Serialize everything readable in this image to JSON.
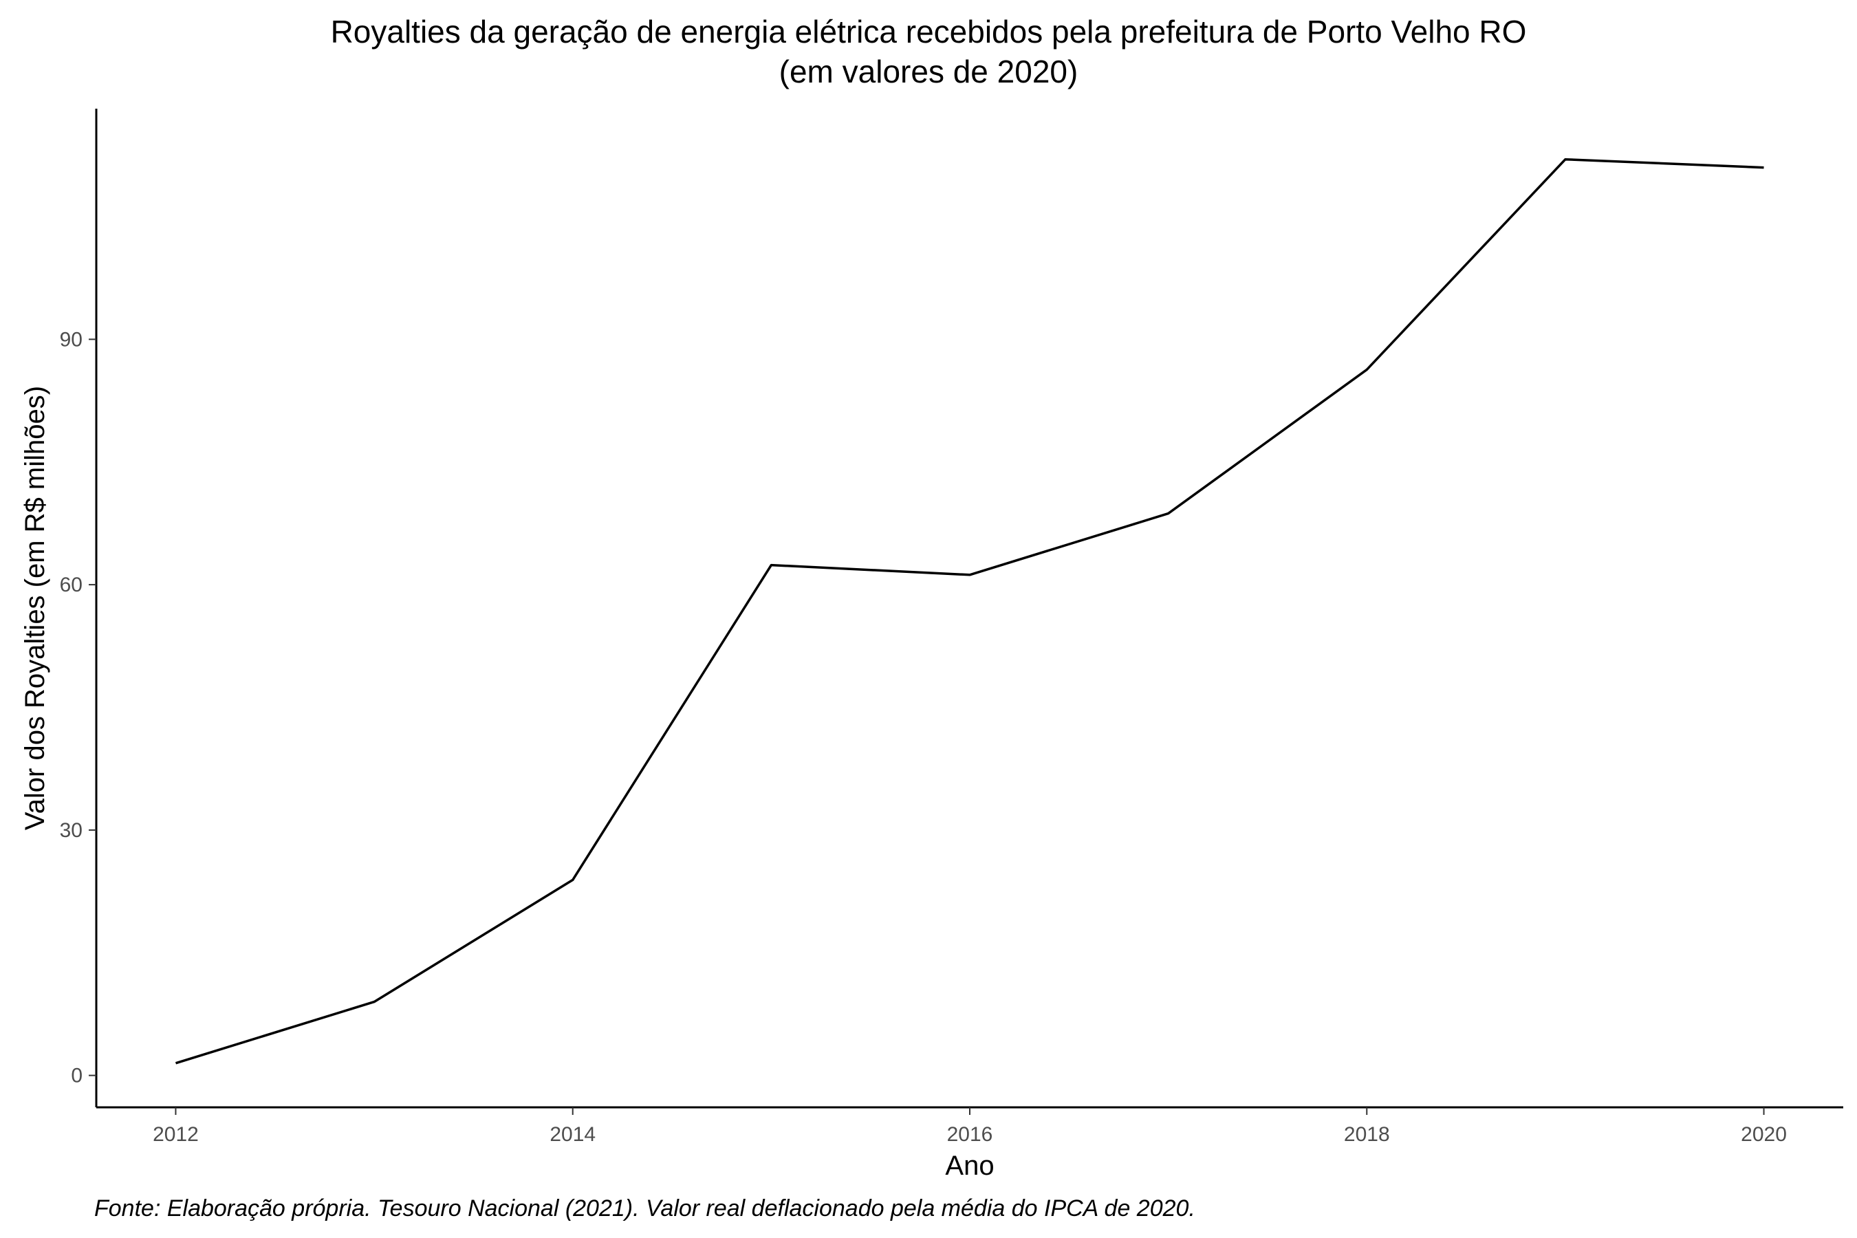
{
  "chart_data": {
    "type": "line",
    "title": "Royalties da geração de energia elétrica recebidos pela prefeitura de Porto Velho RO",
    "subtitle": "(em valores de 2020)",
    "xlabel": "Ano",
    "ylabel": "Valor dos Royalties (em R$ milhões)",
    "caption": "Fonte: Elaboração própria. Tesouro Nacional (2021). Valor real deflacionado pela média do IPCA de 2020.",
    "x": [
      2012,
      2013,
      2014,
      2015,
      2016,
      2017,
      2018,
      2019,
      2020
    ],
    "series": [
      {
        "values": [
          1.5,
          9.0,
          23.9,
          62.4,
          61.2,
          68.7,
          86.3,
          112.0,
          111.0
        ]
      }
    ],
    "xticks": [
      "2012",
      "2014",
      "2016",
      "2018",
      "2020"
    ],
    "yticks": [
      "0",
      "30",
      "60",
      "90"
    ],
    "xlim": [
      2011.6,
      2020.4
    ],
    "ylim": [
      -3.9,
      118.2
    ],
    "grid": false,
    "line_color": "#000000"
  }
}
